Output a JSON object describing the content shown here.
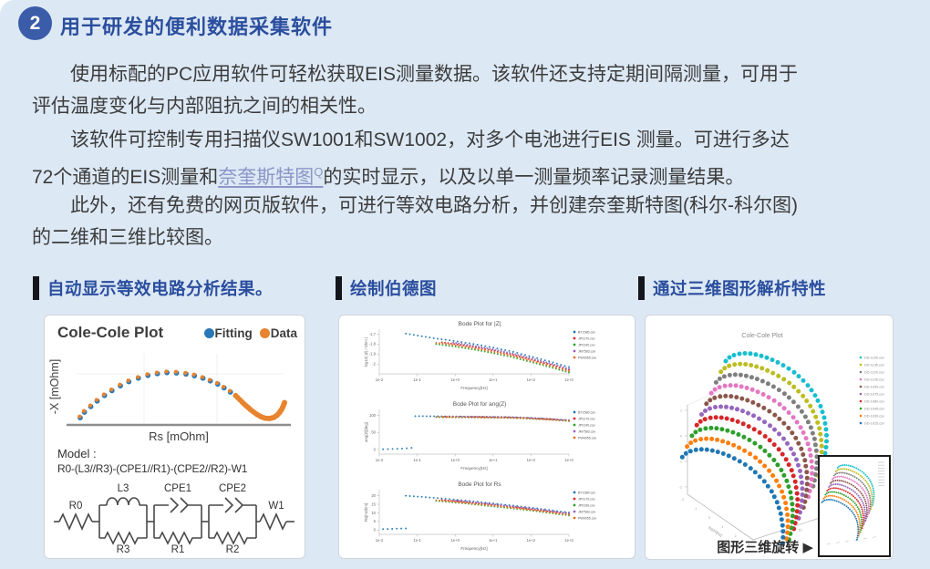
{
  "colors": {
    "page_bg": "#dce8f4",
    "accent": "#3a5ca9",
    "heading": "#2b4e9e",
    "link": "#8d96c8",
    "header_bar": "#15151d"
  },
  "header": {
    "number": "2",
    "title": "用于研发的便利数据采集软件"
  },
  "paragraphs": {
    "p1": [
      "使用标配的PC应用软件可轻松获取EIS测量数据。该软件还支持定期间隔测量，可用于",
      "评估温度变化与内部阻抗之间的相关性。"
    ],
    "p2": {
      "l1": "该软件可控制专用扫描仪SW1001和SW1002，对多个电池进行EIS 测量。可进行多达",
      "l2a": "72个通道的EIS测量和",
      "link": "奈奎斯特图",
      "sup": "Q",
      "l2b": "的实时显示，以及以单一测量频率记录测量结果。"
    },
    "p3": [
      "此外，还有免费的网页版软件，可进行等效电路分析，并创建奈奎斯特图(科尔-科尔图)",
      "的二维和三维比较图。"
    ]
  },
  "panels": [
    {
      "title": "自动显示等效电路分析结果。"
    },
    {
      "title": "绘制伯德图"
    },
    {
      "title": "通过三维图形解析特性"
    }
  ],
  "model": {
    "caption": "Model :",
    "formula": "R0-(L3//R3)-(CPE1//R1)-(CPE2//R2)-W1",
    "labels": {
      "r0": "R0",
      "l3": "L3",
      "cpe1": "CPE1",
      "cpe2": "CPE2",
      "w1": "W1",
      "r3": "R3",
      "r1": "R1",
      "r2": "R2"
    }
  },
  "rotate_label": "图形三维旋转 ▶",
  "chart_data": [
    {
      "type": "scatter",
      "title": "Cole-Cole Plot",
      "xlabel": "Rs [mOhm]",
      "ylabel": "-X [mOhm]",
      "legend": [
        {
          "label": "Fitting",
          "color": "#2878b8"
        },
        {
          "label": "Data",
          "color": "#e8832e"
        }
      ],
      "hook_start": 20,
      "points": [
        [
          0.03,
          0.06
        ],
        [
          0.05,
          0.14
        ],
        [
          0.08,
          0.22
        ],
        [
          0.11,
          0.3
        ],
        [
          0.145,
          0.38
        ],
        [
          0.18,
          0.45
        ],
        [
          0.22,
          0.52
        ],
        [
          0.26,
          0.58
        ],
        [
          0.305,
          0.63
        ],
        [
          0.35,
          0.67
        ],
        [
          0.395,
          0.695
        ],
        [
          0.44,
          0.71
        ],
        [
          0.485,
          0.705
        ],
        [
          0.53,
          0.69
        ],
        [
          0.57,
          0.665
        ],
        [
          0.61,
          0.63
        ],
        [
          0.645,
          0.59
        ],
        [
          0.68,
          0.545
        ],
        [
          0.71,
          0.49
        ],
        [
          0.74,
          0.43
        ],
        [
          0.765,
          0.37
        ],
        [
          0.785,
          0.31
        ],
        [
          0.805,
          0.25
        ],
        [
          0.825,
          0.195
        ],
        [
          0.845,
          0.145
        ],
        [
          0.865,
          0.1
        ],
        [
          0.885,
          0.065
        ],
        [
          0.905,
          0.045
        ],
        [
          0.925,
          0.04
        ],
        [
          0.945,
          0.055
        ],
        [
          0.96,
          0.085
        ],
        [
          0.972,
          0.125
        ],
        [
          0.982,
          0.17
        ],
        [
          0.99,
          0.22
        ],
        [
          0.996,
          0.27
        ]
      ]
    },
    {
      "type": "bode-group",
      "legend": [
        {
          "label": "BT1580.csv",
          "color": "#1f77b4"
        },
        {
          "label": "JP0170.csv",
          "color": "#d62728"
        },
        {
          "label": "JP0190.csv",
          "color": "#2ca02c"
        },
        {
          "label": "JM7583.csv",
          "color": "#9467bd"
        },
        {
          "label": "PW0055.csv",
          "color": "#e2711d"
        }
      ],
      "plots": [
        {
          "title": "Bode Plot for |Z|",
          "ylabel": "log10( |Z| / Ohm )",
          "xlabel": "Frequency[Hz]",
          "yr": [
            -2.08,
            -1.66
          ],
          "yticks": [
            -1.7,
            -1.8,
            -1.9,
            -2
          ],
          "xticks": [
            "1e-2",
            "1e-1",
            "1e+0",
            "1e+1",
            "1e+2",
            "1e+3"
          ],
          "anchors": [
            [
              -1.3,
              -1.695
            ],
            [
              -0.9,
              -1.72
            ],
            [
              -0.5,
              -1.745
            ],
            [
              0,
              -1.77
            ],
            [
              0.5,
              -1.8
            ],
            [
              1.0,
              -1.835
            ],
            [
              1.5,
              -1.875
            ],
            [
              2.0,
              -1.925
            ],
            [
              2.5,
              -1.975
            ],
            [
              3.0,
              -2.03
            ]
          ],
          "series": [
            {
              "color": "#1f77b4",
              "x0": -1.3,
              "dy": 0
            },
            {
              "color": "#d62728",
              "x0": -0.35,
              "dy": -0.03
            },
            {
              "color": "#2ca02c",
              "x0": -0.5,
              "dy": -0.055
            },
            {
              "color": "#9467bd",
              "x0": -0.05,
              "dy": -0.018
            },
            {
              "color": "#e2711d",
              "x0": -0.5,
              "dy": -0.042
            }
          ]
        },
        {
          "title": "Bode Plot for ang(Z)",
          "ylabel": "ang(Z)[deg]",
          "xlabel": "Frequency[Hz]",
          "yr": [
            -8,
            115
          ],
          "yticks": [
            100,
            50,
            0
          ],
          "xticks": [
            "1e-2",
            "1e-1",
            "1e+0",
            "1e+1",
            "1e+2",
            "1e+3"
          ],
          "anchors": [
            [
              -1.05,
              98
            ],
            [
              -0.5,
              97.5
            ],
            [
              0,
              97
            ],
            [
              0.5,
              96.5
            ],
            [
              1.0,
              96
            ],
            [
              1.5,
              95
            ],
            [
              2.0,
              93
            ],
            [
              2.5,
              90
            ],
            [
              3.0,
              86
            ]
          ],
          "series": [
            {
              "color": "#1f77b4",
              "x0": -1.05,
              "dy": 0
            },
            {
              "color": "#d62728",
              "x0": -0.3,
              "dy": -1.2
            },
            {
              "color": "#2ca02c",
              "x0": -0.5,
              "dy": -2.6
            },
            {
              "color": "#9467bd",
              "x0": -0.05,
              "dy": -0.6
            },
            {
              "color": "#e2711d",
              "x0": -0.5,
              "dy": -1.8
            },
            {
              "color": "#1f77b4",
              "x0": -1.9,
              "x1": -1.15,
              "n": 7,
              "dy": 0,
              "anchors": [
                [
                  -1.9,
                  1
                ],
                [
                  -1.6,
                  2
                ],
                [
                  -1.35,
                  3
                ],
                [
                  -1.15,
                  5
                ]
              ]
            }
          ]
        },
        {
          "title": "Bode Plot for Rs",
          "ylabel": "Rs[mOhm]",
          "xlabel": "Frequency[Hz]",
          "yr": [
            -1.5,
            23
          ],
          "yticks": [
            20,
            15,
            10,
            5,
            0
          ],
          "xticks": [
            "1e-2",
            "1e-1",
            "1e+0",
            "1e+1",
            "1e+2",
            "1e+3"
          ],
          "anchors": [
            [
              -1.3,
              20
            ],
            [
              -0.8,
              19.2
            ],
            [
              -0.3,
              18.3
            ],
            [
              0.2,
              17.3
            ],
            [
              0.7,
              16.2
            ],
            [
              1.2,
              15
            ],
            [
              1.7,
              13.8
            ],
            [
              2.2,
              12.5
            ],
            [
              2.7,
              11
            ],
            [
              3.0,
              10.2
            ]
          ],
          "series": [
            {
              "color": "#1f77b4",
              "x0": -1.3,
              "dy": 0
            },
            {
              "color": "#d62728",
              "x0": -0.35,
              "dy": -0.9
            },
            {
              "color": "#2ca02c",
              "x0": -0.5,
              "dy": -1.7
            },
            {
              "color": "#9467bd",
              "x0": -0.05,
              "dy": -0.45
            },
            {
              "color": "#e2711d",
              "x0": -0.5,
              "dy": -1.3
            },
            {
              "color": "#1f77b4",
              "x0": -1.9,
              "x1": -1.3,
              "n": 6,
              "dy": 0,
              "anchors": [
                [
                  -1.9,
                  0.5
                ],
                [
                  -1.3,
                  0.9
                ]
              ]
            }
          ]
        }
      ]
    },
    {
      "type": "scatter3d",
      "title": "Cole-Cole Plot",
      "xlabel3d": "log10[Hz]",
      "ylabel3d": "-X [mOhm]",
      "zticks": [
        "1",
        "0",
        "-1",
        "-2"
      ],
      "fticks": [
        "-2",
        "-1",
        "0",
        "1",
        "2",
        "3"
      ],
      "rticks": [
        "0",
        "10",
        "20",
        "30"
      ],
      "legend": [
        {
          "label": "DD-1150.csv",
          "color": "#17becf"
        },
        {
          "label": "DD-1135.csv",
          "color": "#bcbd22"
        },
        {
          "label": "DD-1120.csv",
          "color": "#7f7f7f"
        },
        {
          "label": "DD-1105.csv",
          "color": "#e377c2"
        },
        {
          "label": "DD-1090.csv",
          "color": "#8c564b"
        },
        {
          "label": "DD-1075.csv",
          "color": "#9467bd"
        },
        {
          "label": "DD-1060.csv",
          "color": "#d62728"
        },
        {
          "label": "DD-1045.csv",
          "color": "#2ca02c"
        },
        {
          "label": "DD-1030.csv",
          "color": "#ff7f0e"
        },
        {
          "label": "DD-1015.csv",
          "color": "#1f77b4"
        }
      ],
      "step": [
        -5.3,
        11.7
      ],
      "series": [
        {
          "color": "#17becf"
        },
        {
          "color": "#bcbd22"
        },
        {
          "color": "#7f7f7f"
        },
        {
          "color": "#e377c2"
        },
        {
          "color": "#8c564b"
        },
        {
          "color": "#9467bd"
        },
        {
          "color": "#d62728"
        },
        {
          "color": "#2ca02c"
        },
        {
          "color": "#ff7f0e"
        },
        {
          "color": "#1f77b4"
        }
      ],
      "base": [
        [
          88,
          50
        ],
        [
          92,
          46
        ],
        [
          97,
          43.5
        ],
        [
          103,
          42
        ],
        [
          109,
          41.5
        ],
        [
          115,
          41.8
        ],
        [
          121,
          42.8
        ],
        [
          127,
          44.3
        ],
        [
          133,
          46.2
        ],
        [
          139,
          48.6
        ],
        [
          145,
          51.4
        ],
        [
          151,
          54.6
        ],
        [
          157,
          58.2
        ],
        [
          163,
          62.3
        ],
        [
          168,
          66.6
        ],
        [
          173,
          71.4
        ],
        [
          178,
          76.6
        ],
        [
          182,
          81.9
        ],
        [
          186,
          87.6
        ],
        [
          189,
          93.4
        ],
        [
          192,
          99.5
        ],
        [
          194,
          105.7
        ],
        [
          196,
          112
        ],
        [
          197,
          118.4
        ],
        [
          198,
          124.9
        ],
        [
          198.5,
          131.4
        ],
        [
          198.5,
          138
        ],
        [
          198,
          144.5
        ],
        [
          197,
          151
        ],
        [
          196,
          157.4
        ],
        [
          194.5,
          163.8
        ]
      ]
    }
  ]
}
